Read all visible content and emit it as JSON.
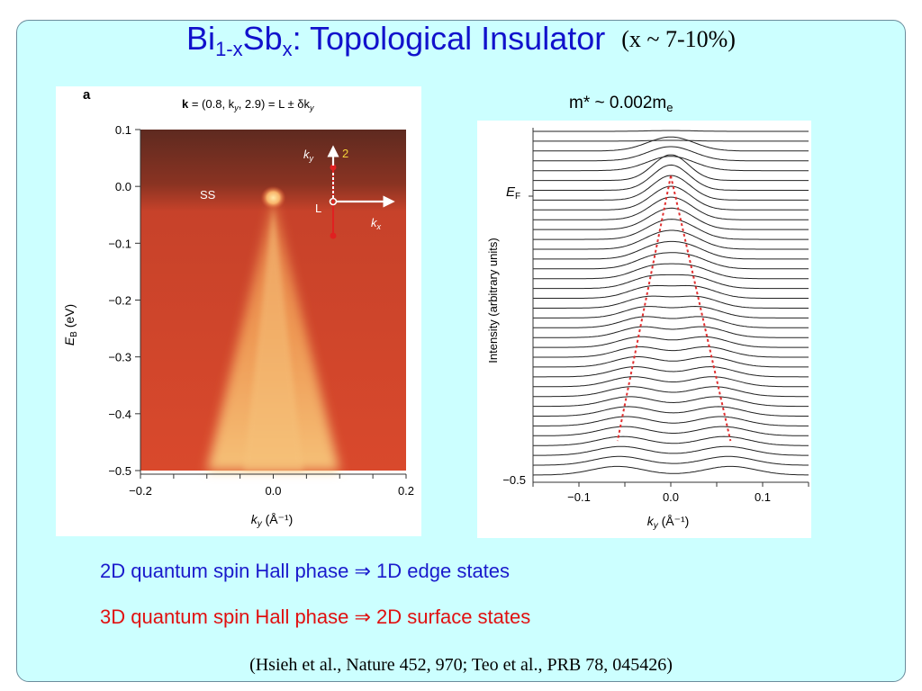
{
  "slide": {
    "title_main": "Bi",
    "title_sub1": "1-x",
    "title_mid": "Sb",
    "title_sub2": "x",
    "title_rest": ": Topological Insulator",
    "title_paren": "(x ~ 7-10%)",
    "effective_mass_prefix": "m* ~ 0.002m",
    "effective_mass_sub": "e",
    "statement_2d": "2D quantum spin Hall phase ⇒ 1D edge states",
    "statement_3d": "3D quantum spin Hall phase ⇒ 2D surface states",
    "citation": "(Hsieh et al., Nature 452, 970; Teo et al., PRB 78, 045426)"
  },
  "colors": {
    "title_blue": "#1111cc",
    "statement_blue": "#1a1acc",
    "statement_red": "#e01010",
    "slide_bg": "#ccffff"
  },
  "chart_data": [
    {
      "type": "heatmap",
      "panel_label": "a",
      "title_prefix": "k",
      "title_rest": " = (0.8, k",
      "title_sub": "y",
      "title_rest2": ", 2.9) = L ± δk",
      "title_sub2": "y",
      "xlabel": "k",
      "xlabel_sub": "y",
      "xlabel_unit": " (Å⁻¹)",
      "ylabel": "E",
      "ylabel_sub": "B",
      "ylabel_unit": " (eV)",
      "xlim": [
        -0.2,
        0.2
      ],
      "ylim": [
        -0.5,
        0.1
      ],
      "xticks": [
        -0.2,
        0.0,
        0.2
      ],
      "xtick_labels": [
        "−0.2",
        "0.0",
        "0.2"
      ],
      "yticks": [
        0.1,
        0.0,
        -0.1,
        -0.2,
        -0.3,
        -0.4,
        -0.5
      ],
      "ytick_labels": [
        "0.1",
        "0.0",
        "−0.1",
        "−0.2",
        "−0.3",
        "−0.4",
        "−0.5"
      ],
      "annotation_ss": "SS",
      "annotation_L": "L",
      "annotation_ky": "k",
      "annotation_ky_sub": "y",
      "annotation_kx": "k",
      "annotation_kx_sub": "x",
      "annotation_2": "2",
      "surface_state_apex": {
        "x": 0.0,
        "y": -0.02
      },
      "cone_half_width_at_bottom": 0.1
    },
    {
      "type": "line",
      "xlabel": "k",
      "xlabel_sub": "y",
      "xlabel_unit": " (Å⁻¹)",
      "ylabel": "Intensity (arbitrary units)",
      "xlim": [
        -0.15,
        0.15
      ],
      "xticks": [
        -0.1,
        0.0,
        0.1
      ],
      "xtick_labels": [
        "−0.1",
        "0.0",
        "0.1"
      ],
      "y_markers": [
        {
          "label": "E",
          "label_sub": "F",
          "level": "top"
        },
        {
          "label": "−0.5",
          "level": "bottom"
        }
      ],
      "n_curves": 36,
      "dispersion_line": {
        "color": "#e03030",
        "style": "dashed",
        "apex": [
          0.0,
          0.0
        ],
        "bottom_left_x": -0.058,
        "bottom_right_x": 0.065,
        "energy_bottom": -0.5
      }
    }
  ]
}
